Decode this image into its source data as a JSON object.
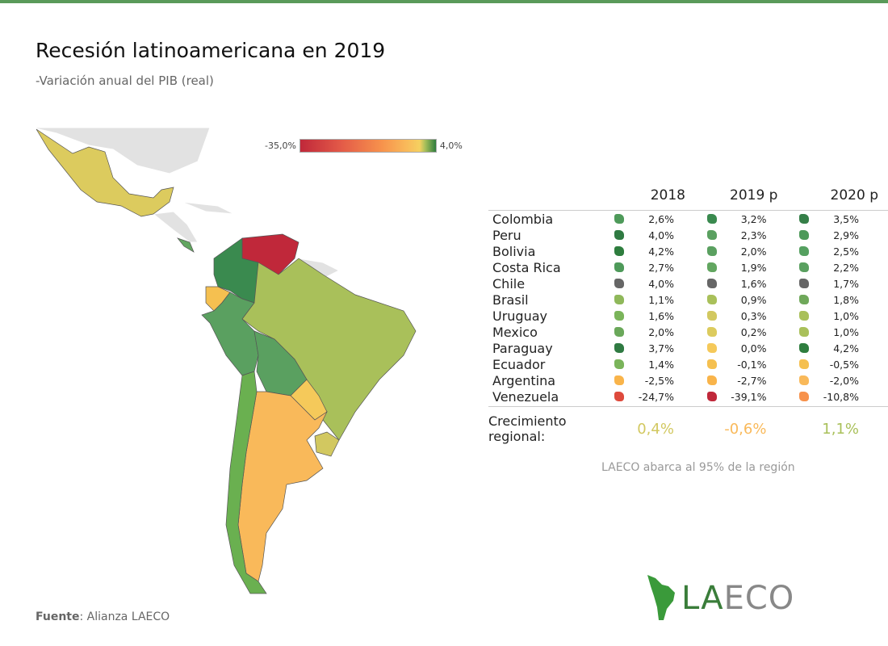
{
  "title": "Recesión latinoamericana en 2019",
  "subtitle": "-Variación anual del PIB (real)",
  "legend": {
    "min": "-35,0%",
    "max": "4,0%"
  },
  "note": "LAECO abarca al 95% de la región",
  "source": {
    "label": "Fuente",
    "text": ": Alianza LAECO"
  },
  "logo": {
    "la": "LA",
    "eco": "ECO"
  },
  "chart_data": {
    "type": "table",
    "map_year": "2019",
    "columns": [
      "2018",
      "2019 p",
      "2020 p"
    ],
    "rows": [
      {
        "country": "Colombia",
        "values": [
          "2,6%",
          "3,2%",
          "3,5%"
        ],
        "colors": [
          "#4e9a5a",
          "#3a8a4f",
          "#357f48"
        ]
      },
      {
        "country": "Peru",
        "values": [
          "4,0%",
          "2,3%",
          "2,9%"
        ],
        "colors": [
          "#2f7a42",
          "#5aa060",
          "#4e9a5a"
        ]
      },
      {
        "country": "Bolivia",
        "values": [
          "4,2%",
          "2,0%",
          "2,5%"
        ],
        "colors": [
          "#2e7d3e",
          "#5aa060",
          "#55a060"
        ]
      },
      {
        "country": "Costa Rica",
        "values": [
          "2,7%",
          "1,9%",
          "2,2%"
        ],
        "colors": [
          "#4e9a5a",
          "#62a660",
          "#5aa060"
        ]
      },
      {
        "country": "Chile",
        "values": [
          "4,0%",
          "1,6%",
          "1,7%"
        ],
        "colors": [
          "#666",
          "#666",
          "#666"
        ]
      },
      {
        "country": "Brasil",
        "values": [
          "1,1%",
          "0,9%",
          "1,8%"
        ],
        "colors": [
          "#8fb85a",
          "#a9c05a",
          "#6fa85a"
        ]
      },
      {
        "country": "Uruguay",
        "values": [
          "1,6%",
          "0,3%",
          "1,0%"
        ],
        "colors": [
          "#7ab45a",
          "#d2c860",
          "#a9c05a"
        ]
      },
      {
        "country": "Mexico",
        "values": [
          "2,0%",
          "0,2%",
          "1,0%"
        ],
        "colors": [
          "#6aa85a",
          "#dccb5e",
          "#a9c05a"
        ]
      },
      {
        "country": "Paraguay",
        "values": [
          "3,7%",
          "0,0%",
          "4,2%"
        ],
        "colors": [
          "#2f7a42",
          "#f5c95a",
          "#2e7d3e"
        ]
      },
      {
        "country": "Ecuador",
        "values": [
          "1,4%",
          "-0,1%",
          "-0,5%"
        ],
        "colors": [
          "#7ab45a",
          "#f5c050",
          "#f5c050"
        ]
      },
      {
        "country": "Argentina",
        "values": [
          "-2,5%",
          "-2,7%",
          "-2,0%"
        ],
        "colors": [
          "#f9b44a",
          "#f9b44a",
          "#f9b95a"
        ]
      },
      {
        "country": "Venezuela",
        "values": [
          "-24,7%",
          "-39,1%",
          "-10,8%"
        ],
        "colors": [
          "#de4a3c",
          "#c0283a",
          "#f7924c"
        ]
      }
    ],
    "regional": {
      "label": "Crecimiento regional:",
      "values": [
        "0,4%",
        "-0,6%",
        "1,1%"
      ],
      "colors": [
        "#d2c860",
        "#f9b95a",
        "#a9c05a"
      ]
    }
  }
}
